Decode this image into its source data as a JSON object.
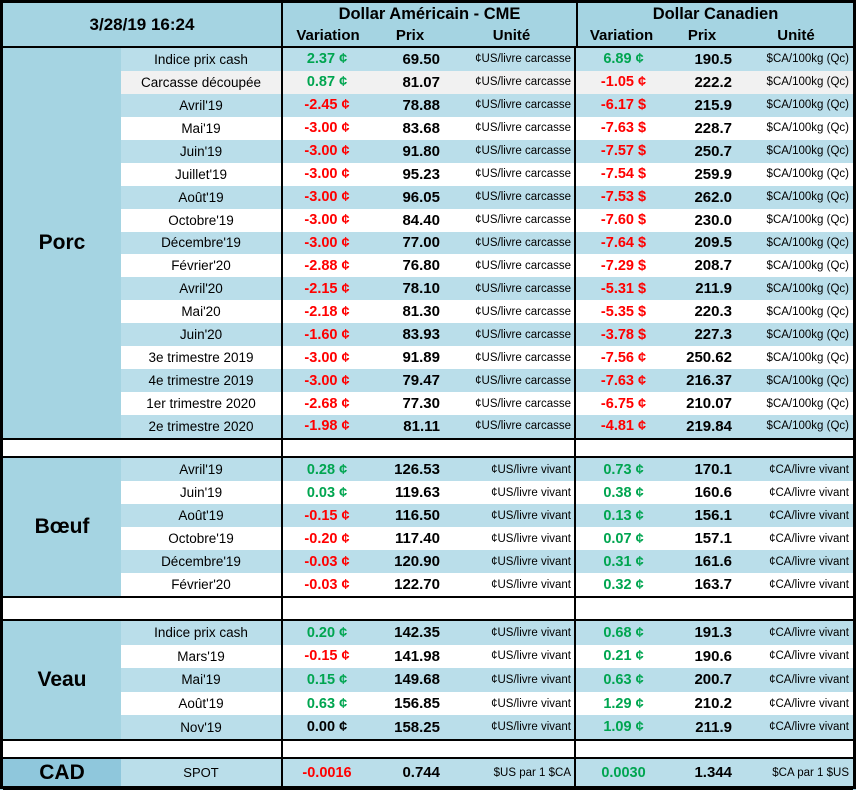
{
  "header": {
    "timestamp": "3/28/19 16:24",
    "us_title": "Dollar Américain - CME",
    "ca_title": "Dollar Canadien",
    "col_variation": "Variation",
    "col_prix": "Prix",
    "col_unite": "Unité"
  },
  "colors": {
    "positive_green": "#00A550",
    "negative_red": "#FF0000",
    "zero_black": "#000000",
    "stripe_blue": "#BADEEA",
    "header_blue": "#A5D4E2",
    "cad_category_blue": "#8FC7DC",
    "gray_row": "#F1F1F1",
    "white_row": "#FFFFFF"
  },
  "sections": [
    {
      "name": "porc",
      "label": "Porc",
      "us_unit": "¢US/livre carcasse",
      "ca_unit": "$CA/100kg (Qc)",
      "rows": [
        {
          "label": "Indice prix cash",
          "us_var": "2.37",
          "us_sfx": "¢",
          "us_prix": "69.50",
          "ca_var": "6.89",
          "ca_sfx": "¢",
          "ca_prix": "190.5"
        },
        {
          "label": "Carcasse découpée",
          "us_var": "0.87",
          "us_sfx": "¢",
          "us_prix": "81.07",
          "ca_var": "-1.05",
          "ca_sfx": "¢",
          "ca_prix": "222.2"
        },
        {
          "label": "Avril'19",
          "us_var": "-2.45",
          "us_sfx": "¢",
          "us_prix": "78.88",
          "ca_var": "-6.17",
          "ca_sfx": "$",
          "ca_prix": "215.9"
        },
        {
          "label": "Mai'19",
          "us_var": "-3.00",
          "us_sfx": "¢",
          "us_prix": "83.68",
          "ca_var": "-7.63",
          "ca_sfx": "$",
          "ca_prix": "228.7"
        },
        {
          "label": "Juin'19",
          "us_var": "-3.00",
          "us_sfx": "¢",
          "us_prix": "91.80",
          "ca_var": "-7.57",
          "ca_sfx": "$",
          "ca_prix": "250.7"
        },
        {
          "label": "Juillet'19",
          "us_var": "-3.00",
          "us_sfx": "¢",
          "us_prix": "95.23",
          "ca_var": "-7.54",
          "ca_sfx": "$",
          "ca_prix": "259.9"
        },
        {
          "label": "Août'19",
          "us_var": "-3.00",
          "us_sfx": "¢",
          "us_prix": "96.05",
          "ca_var": "-7.53",
          "ca_sfx": "$",
          "ca_prix": "262.0"
        },
        {
          "label": "Octobre'19",
          "us_var": "-3.00",
          "us_sfx": "¢",
          "us_prix": "84.40",
          "ca_var": "-7.60",
          "ca_sfx": "$",
          "ca_prix": "230.0"
        },
        {
          "label": "Décembre'19",
          "us_var": "-3.00",
          "us_sfx": "¢",
          "us_prix": "77.00",
          "ca_var": "-7.64",
          "ca_sfx": "$",
          "ca_prix": "209.5"
        },
        {
          "label": "Février'20",
          "us_var": "-2.88",
          "us_sfx": "¢",
          "us_prix": "76.80",
          "ca_var": "-7.29",
          "ca_sfx": "$",
          "ca_prix": "208.7"
        },
        {
          "label": "Avril'20",
          "us_var": "-2.15",
          "us_sfx": "¢",
          "us_prix": "78.10",
          "ca_var": "-5.31",
          "ca_sfx": "$",
          "ca_prix": "211.9"
        },
        {
          "label": "Mai'20",
          "us_var": "-2.18",
          "us_sfx": "¢",
          "us_prix": "81.30",
          "ca_var": "-5.35",
          "ca_sfx": "$",
          "ca_prix": "220.3"
        },
        {
          "label": "Juin'20",
          "us_var": "-1.60",
          "us_sfx": "¢",
          "us_prix": "83.93",
          "ca_var": "-3.78",
          "ca_sfx": "$",
          "ca_prix": "227.3"
        },
        {
          "label": "3e trimestre 2019",
          "us_var": "-3.00",
          "us_sfx": "¢",
          "us_prix": "91.89",
          "ca_var": "-7.56",
          "ca_sfx": "¢",
          "ca_prix": "250.62"
        },
        {
          "label": "4e trimestre 2019",
          "us_var": "-3.00",
          "us_sfx": "¢",
          "us_prix": "79.47",
          "ca_var": "-7.63",
          "ca_sfx": "¢",
          "ca_prix": "216.37"
        },
        {
          "label": "1er trimestre 2020",
          "us_var": "-2.68",
          "us_sfx": "¢",
          "us_prix": "77.30",
          "ca_var": "-6.75",
          "ca_sfx": "¢",
          "ca_prix": "210.07"
        },
        {
          "label": "2e trimestre 2020",
          "us_var": "-1.98",
          "us_sfx": "¢",
          "us_prix": "81.11",
          "ca_var": "-4.81",
          "ca_sfx": "¢",
          "ca_prix": "219.84"
        }
      ]
    },
    {
      "name": "boeuf",
      "label": "Bœuf",
      "us_unit": "¢US/livre vivant",
      "ca_unit": "¢CA/livre vivant",
      "rows": [
        {
          "label": "Avril'19",
          "us_var": "0.28",
          "us_sfx": "¢",
          "us_prix": "126.53",
          "ca_var": "0.73",
          "ca_sfx": "¢",
          "ca_prix": "170.1"
        },
        {
          "label": "Juin'19",
          "us_var": "0.03",
          "us_sfx": "¢",
          "us_prix": "119.63",
          "ca_var": "0.38",
          "ca_sfx": "¢",
          "ca_prix": "160.6"
        },
        {
          "label": "Août'19",
          "us_var": "-0.15",
          "us_sfx": "¢",
          "us_prix": "116.50",
          "ca_var": "0.13",
          "ca_sfx": "¢",
          "ca_prix": "156.1"
        },
        {
          "label": "Octobre'19",
          "us_var": "-0.20",
          "us_sfx": "¢",
          "us_prix": "117.40",
          "ca_var": "0.07",
          "ca_sfx": "¢",
          "ca_prix": "157.1"
        },
        {
          "label": "Décembre'19",
          "us_var": "-0.03",
          "us_sfx": "¢",
          "us_prix": "120.90",
          "ca_var": "0.31",
          "ca_sfx": "¢",
          "ca_prix": "161.6"
        },
        {
          "label": "Février'20",
          "us_var": "-0.03",
          "us_sfx": "¢",
          "us_prix": "122.70",
          "ca_var": "0.32",
          "ca_sfx": "¢",
          "ca_prix": "163.7"
        }
      ]
    },
    {
      "name": "veau",
      "label": "Veau",
      "us_unit": "¢US/livre vivant",
      "ca_unit": "¢CA/livre vivant",
      "rows": [
        {
          "label": "Indice prix cash",
          "us_var": "0.20",
          "us_sfx": "¢",
          "us_prix": "142.35",
          "ca_var": "0.68",
          "ca_sfx": "¢",
          "ca_prix": "191.3"
        },
        {
          "label": "Mars'19",
          "us_var": "-0.15",
          "us_sfx": "¢",
          "us_prix": "141.98",
          "ca_var": "0.21",
          "ca_sfx": "¢",
          "ca_prix": "190.6"
        },
        {
          "label": "Mai'19",
          "us_var": "0.15",
          "us_sfx": "¢",
          "us_prix": "149.68",
          "ca_var": "0.63",
          "ca_sfx": "¢",
          "ca_prix": "200.7"
        },
        {
          "label": "Août'19",
          "us_var": "0.63",
          "us_sfx": "¢",
          "us_prix": "156.85",
          "ca_var": "1.29",
          "ca_sfx": "¢",
          "ca_prix": "210.2"
        },
        {
          "label": "Nov'19",
          "us_var": "0.00",
          "us_sfx": "¢",
          "us_prix": "158.25",
          "ca_var": "1.09",
          "ca_sfx": "¢",
          "ca_prix": "211.9"
        }
      ]
    },
    {
      "name": "cad",
      "label": "CAD",
      "us_unit": "$US par 1 $CA",
      "ca_unit": "$CA par 1 $US",
      "rows": [
        {
          "label": "SPOT",
          "us_var": "-0.0016",
          "us_sfx": "",
          "us_prix": "0.744",
          "ca_var": "0.0030",
          "ca_sfx": "",
          "ca_prix": "1.344"
        }
      ]
    }
  ]
}
